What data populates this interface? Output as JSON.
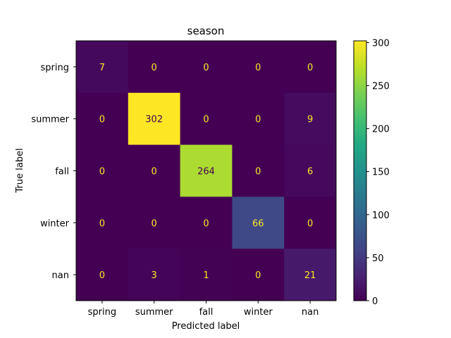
{
  "chart_data": {
    "type": "heatmap",
    "title": "season",
    "xlabel": "Predicted label",
    "ylabel": "True label",
    "x_categories": [
      "spring",
      "summer",
      "fall",
      "winter",
      "nan"
    ],
    "y_categories": [
      "spring",
      "summer",
      "fall",
      "winter",
      "nan"
    ],
    "values": [
      [
        7,
        0,
        0,
        0,
        0
      ],
      [
        0,
        302,
        0,
        0,
        9
      ],
      [
        0,
        0,
        264,
        0,
        6
      ],
      [
        0,
        0,
        0,
        66,
        0
      ],
      [
        0,
        3,
        1,
        0,
        21
      ]
    ],
    "colormap": "viridis",
    "vmin": 0,
    "vmax": 302,
    "colorbar_ticks": [
      0,
      50,
      100,
      150,
      200,
      250,
      300
    ],
    "colorbar_tick_labels": [
      "0",
      "50",
      "100",
      "150",
      "200",
      "250",
      "300"
    ],
    "text_color_dark_cells": "#fde725",
    "text_color_light_cells": "#440154"
  }
}
